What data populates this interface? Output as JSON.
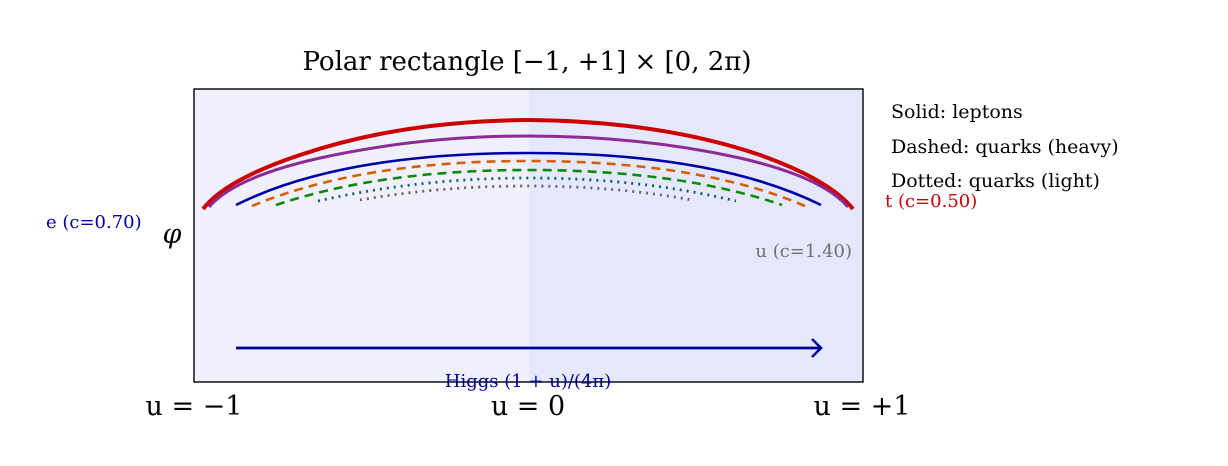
{
  "title": "Polar rectangle [−1, +1] × [0, 2π)",
  "axis": {
    "phi_label": "φ",
    "ticks": [
      "u = −1",
      "u = 0",
      "u = +1"
    ]
  },
  "legend": [
    "Solid: leptons",
    "Dashed: quarks (heavy)",
    "Dotted: quarks (light)"
  ],
  "labels": {
    "e": "e (c=0.70)",
    "t": "t (c=0.50)",
    "u": "u (c=1.40)",
    "higgs": "Higgs (1 + u)/(4π)"
  },
  "colors": {
    "panel_left": "#eff0fb",
    "panel_right": "#e5e8fb",
    "e": "#0000a8",
    "t": "#cc0000",
    "u": "#707070",
    "higgs": "#00009c",
    "purple": "#8c2a96",
    "orange": "#d4600a",
    "green": "#0a8a0a",
    "teal": "#0f5e6e",
    "gray": "#656565"
  }
}
